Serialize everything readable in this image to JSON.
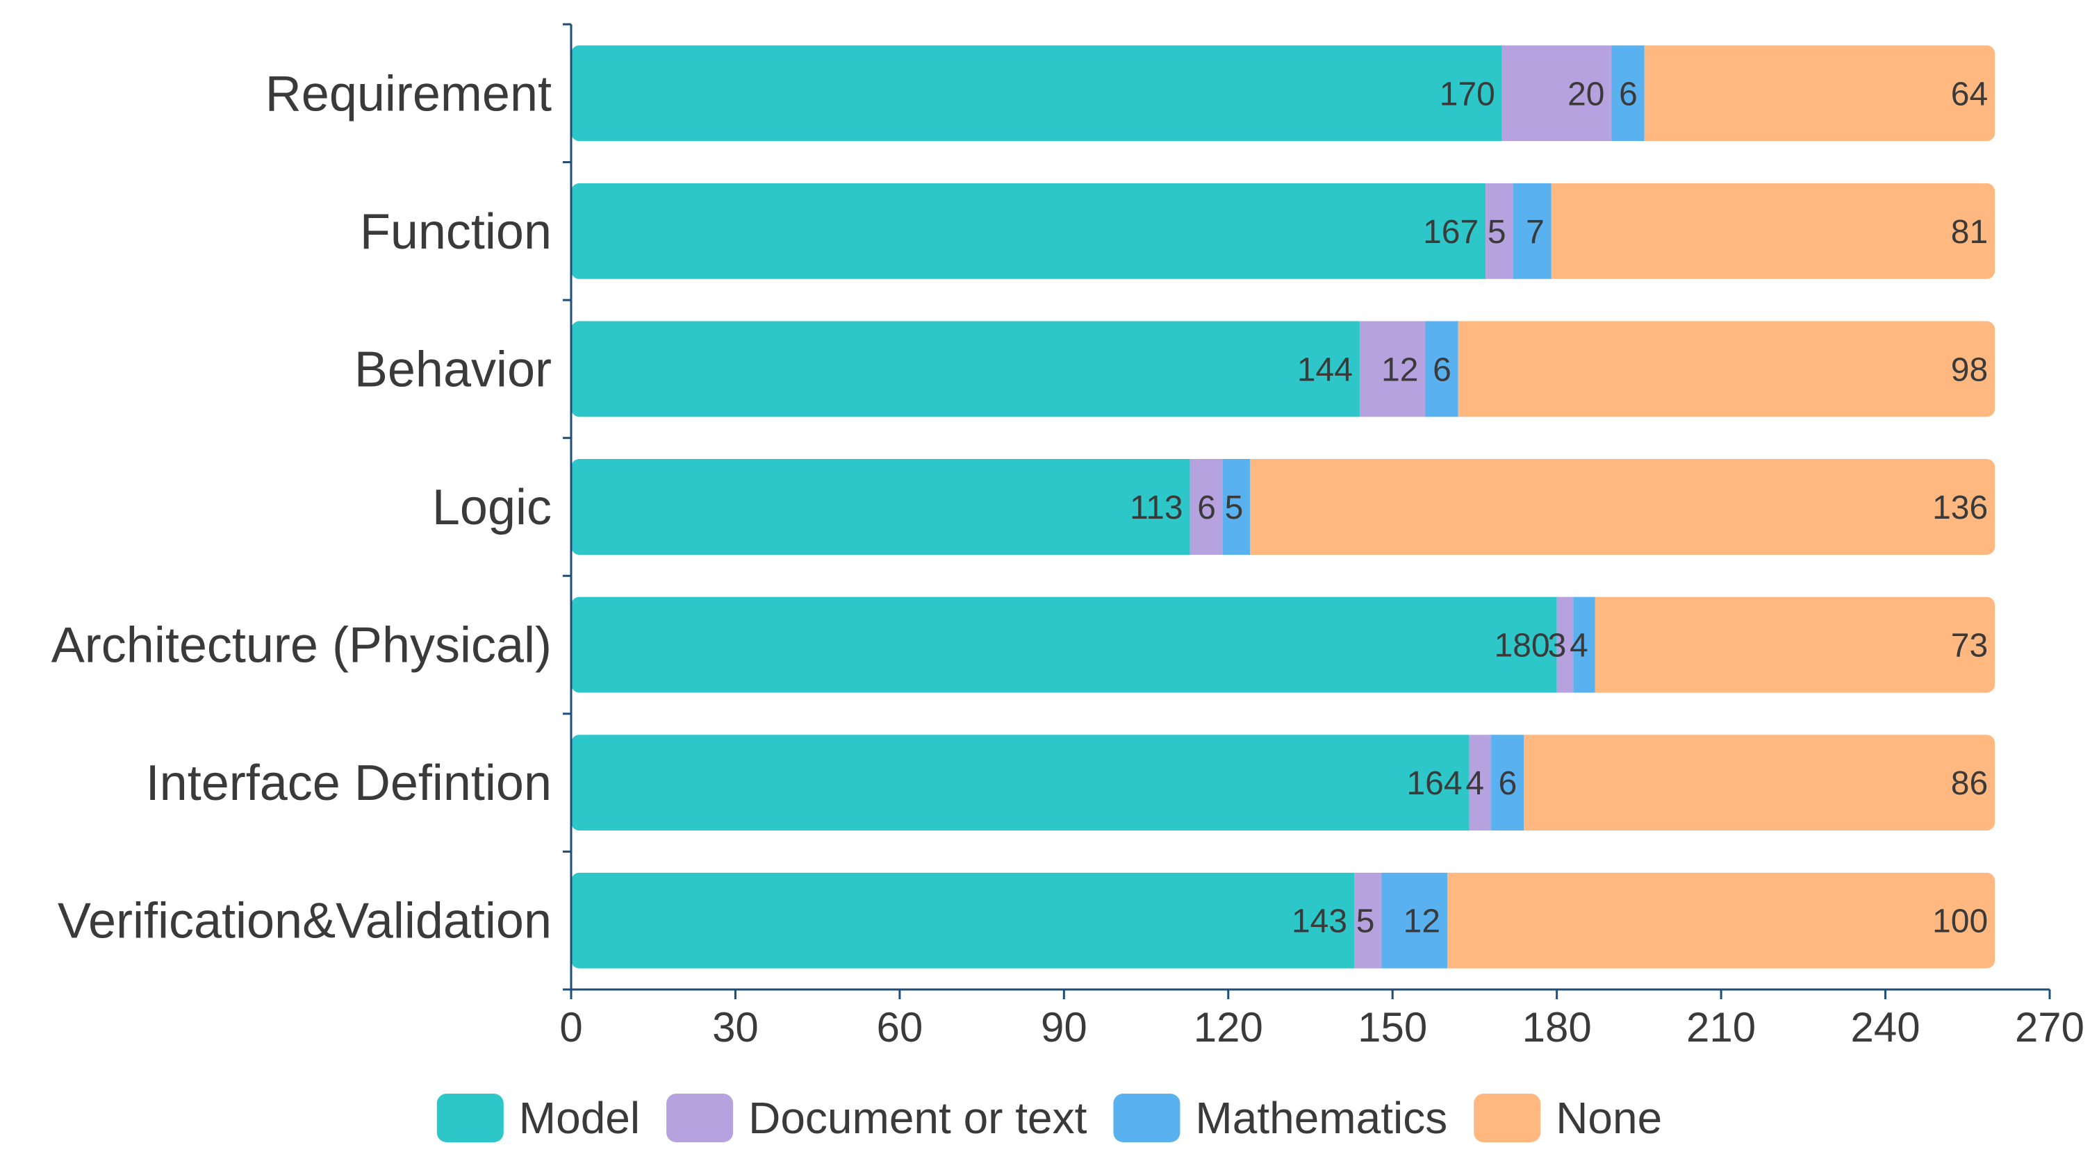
{
  "chart_data": {
    "type": "bar",
    "orientation": "horizontal",
    "stacked": true,
    "title": "",
    "xlabel": "",
    "ylabel": "",
    "xlim": [
      0,
      270
    ],
    "xticks": [
      0,
      30,
      60,
      90,
      120,
      150,
      180,
      210,
      240,
      270
    ],
    "grid": false,
    "legend_position": "bottom",
    "categories": [
      "Requirement",
      "Function",
      "Behavior",
      "Logic",
      "Architecture (Physical)",
      "Interface Defintion",
      "Verification&Validation"
    ],
    "series": [
      {
        "name": "Model",
        "color": "#2ec7c9",
        "values": [
          170,
          167,
          144,
          113,
          180,
          164,
          143
        ]
      },
      {
        "name": "Document or text",
        "color": "#b6a2de",
        "values": [
          20,
          5,
          12,
          6,
          3,
          4,
          5
        ]
      },
      {
        "name": "Mathematics",
        "color": "#5ab1ef",
        "values": [
          6,
          7,
          6,
          5,
          4,
          6,
          12
        ]
      },
      {
        "name": "None",
        "color": "#ffb980",
        "values": [
          64,
          81,
          98,
          136,
          73,
          86,
          100
        ]
      }
    ]
  },
  "colors": {
    "axis": "#1f4e79",
    "text": "#3a3a3a"
  }
}
